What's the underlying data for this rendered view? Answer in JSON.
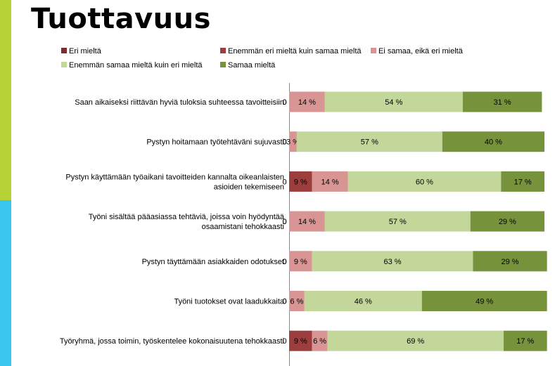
{
  "colors": {
    "accent_top": "#b5d334",
    "accent_bottom": "#39c7f0"
  },
  "page": {
    "title": "Tuottavuus"
  },
  "chart_data": {
    "type": "bar",
    "orientation": "horizontal",
    "stacked": true,
    "title": "Tuottavuus",
    "xlabel": "",
    "ylabel": "",
    "xlim": [
      0,
      100
    ],
    "grid": false,
    "legend_position": "top",
    "categories": [
      [
        "Saan aikaiseksi riittävän hyviä tuloksia suhteessa tavoitteisiin"
      ],
      [
        "Pystyn hoitamaan työtehtäväni sujuvasti"
      ],
      [
        "Pystyn käyttämään työaikani tavoitteiden kannalta oikeanlaisten",
        "asioiden tekemiseen"
      ],
      [
        "Työni sisältää pääasiassa tehtäviä, joissa voin hyödyntää",
        "osaamistani tehokkaasti"
      ],
      [
        "Pystyn täyttämään asiakkaiden odotukset"
      ],
      [
        "Työni tuotokset ovat laadukkaita"
      ],
      [
        "Työryhmä, jossa toimin, työskentelee kokonaisuutena tehokkaasti"
      ]
    ],
    "series": [
      {
        "name": "Eri mieltä",
        "color": "#7b2d2f",
        "values": [
          0,
          0,
          0,
          0,
          0,
          0,
          0
        ],
        "labels": [
          "0 %",
          "0 %",
          "0 %",
          "0 %",
          "0 %",
          "0 %",
          "0 %"
        ]
      },
      {
        "name": "Enemmän eri mieltä kuin samaa mieltä",
        "color": "#9c3d3e",
        "values": [
          0,
          0,
          9,
          0,
          0,
          0,
          9
        ],
        "labels": [
          "0 %",
          "0 %",
          "9 %",
          "0 %",
          "0 %",
          "0 %",
          "9 %"
        ]
      },
      {
        "name": "Ei samaa, eikä eri mieltä",
        "color": "#d99594",
        "values": [
          14,
          3,
          14,
          14,
          9,
          6,
          6
        ],
        "labels": [
          "14 %",
          "3 %",
          "14 %",
          "14 %",
          "9 %",
          "6 %",
          "6 %"
        ]
      },
      {
        "name": "Enemmän samaa mieltä kuin eri mieltä",
        "color": "#c4d79b",
        "values": [
          54,
          57,
          60,
          57,
          63,
          46,
          69
        ],
        "labels": [
          "54 %",
          "57 %",
          "60 %",
          "57 %",
          "63 %",
          "46 %",
          "69 %"
        ]
      },
      {
        "name": "Samaa mieltä",
        "color": "#76933c",
        "values": [
          31,
          40,
          17,
          29,
          29,
          49,
          17
        ],
        "labels": [
          "31 %",
          "40 %",
          "17 %",
          "29 %",
          "29 %",
          "49 %",
          "17 %"
        ]
      }
    ]
  }
}
